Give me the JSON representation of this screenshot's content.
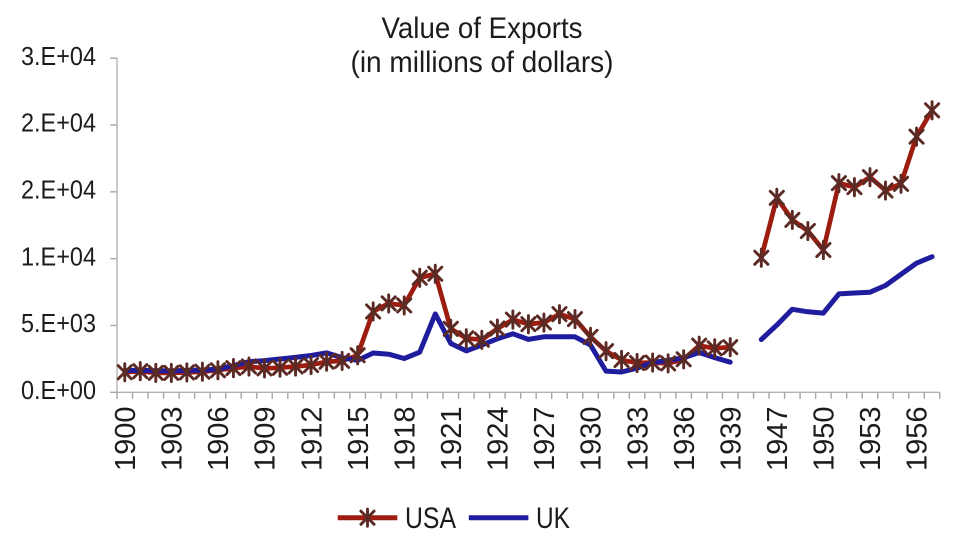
{
  "title": {
    "line1": "Value of Exports",
    "line2": "(in millions of dollars)"
  },
  "legend": {
    "items": [
      {
        "label": "USA",
        "symbol": "line-with-star-marker",
        "color": "#9d1c10"
      },
      {
        "label": "UK",
        "symbol": "line",
        "color": "#1f1c9e"
      }
    ]
  },
  "chart_data": {
    "type": "line",
    "title": "Value of Exports",
    "subtitle": "(in millions of dollars)",
    "xlabel": "",
    "ylabel": "",
    "grid": "off",
    "legend_position": "bottom-center",
    "y_axis": {
      "min": 0,
      "max": 25000,
      "step": 5000,
      "tick_labels_top_to_bottom": [
        "3.E+04",
        "2.E+04",
        "2.E+04",
        "1.E+04",
        "5.E+03",
        "0.E+00"
      ],
      "format": "scientific-0-decimals"
    },
    "x_axis": {
      "categories_note": "years 1900-1939 then 1946-1957; war years 1940-1945 omitted creating a gap",
      "tick_label_years": [
        1900,
        1903,
        1906,
        1909,
        1912,
        1915,
        1918,
        1921,
        1924,
        1927,
        1930,
        1933,
        1936,
        1939,
        1947,
        1950,
        1953,
        1956
      ],
      "label_rotation_degrees": -90
    },
    "series": [
      {
        "name": "USA",
        "color": "#9d1c10",
        "marker": "star",
        "marker_color": "#5c2a24",
        "points": [
          [
            1900,
            1500
          ],
          [
            1901,
            1580
          ],
          [
            1902,
            1450
          ],
          [
            1903,
            1450
          ],
          [
            1904,
            1490
          ],
          [
            1905,
            1540
          ],
          [
            1906,
            1650
          ],
          [
            1907,
            1810
          ],
          [
            1908,
            1930
          ],
          [
            1909,
            1790
          ],
          [
            1910,
            1840
          ],
          [
            1911,
            1930
          ],
          [
            1912,
            2040
          ],
          [
            1913,
            2290
          ],
          [
            1914,
            2350
          ],
          [
            1915,
            2770
          ],
          [
            1916,
            6050
          ],
          [
            1917,
            6650
          ],
          [
            1918,
            6500
          ],
          [
            1919,
            8570
          ],
          [
            1920,
            8870
          ],
          [
            1921,
            4750
          ],
          [
            1922,
            4040
          ],
          [
            1923,
            3930
          ],
          [
            1924,
            4770
          ],
          [
            1925,
            5440
          ],
          [
            1926,
            5100
          ],
          [
            1927,
            5220
          ],
          [
            1928,
            5850
          ],
          [
            1929,
            5480
          ],
          [
            1930,
            4150
          ],
          [
            1931,
            3080
          ],
          [
            1932,
            2420
          ],
          [
            1933,
            2190
          ],
          [
            1934,
            2230
          ],
          [
            1935,
            2160
          ],
          [
            1936,
            2470
          ],
          [
            1937,
            3490
          ],
          [
            1938,
            3290
          ],
          [
            1939,
            3380
          ],
          [
            1946,
            10070
          ],
          [
            1947,
            14550
          ],
          [
            1948,
            12900
          ],
          [
            1949,
            12070
          ],
          [
            1950,
            10650
          ],
          [
            1951,
            15650
          ],
          [
            1952,
            15350
          ],
          [
            1953,
            16100
          ],
          [
            1954,
            15100
          ],
          [
            1955,
            15600
          ],
          [
            1956,
            19130
          ],
          [
            1957,
            21100
          ]
        ]
      },
      {
        "name": "UK",
        "color": "#1f1c9e",
        "marker": "none",
        "points": [
          [
            1900,
            1640
          ],
          [
            1901,
            1640
          ],
          [
            1902,
            1620
          ],
          [
            1903,
            1600
          ],
          [
            1904,
            1640
          ],
          [
            1905,
            1660
          ],
          [
            1906,
            1740
          ],
          [
            1907,
            2000
          ],
          [
            1908,
            2290
          ],
          [
            1909,
            2370
          ],
          [
            1910,
            2490
          ],
          [
            1911,
            2610
          ],
          [
            1912,
            2750
          ],
          [
            1913,
            2950
          ],
          [
            1914,
            2590
          ],
          [
            1915,
            2390
          ],
          [
            1916,
            2940
          ],
          [
            1917,
            2850
          ],
          [
            1918,
            2530
          ],
          [
            1919,
            3000
          ],
          [
            1920,
            5870
          ],
          [
            1921,
            3650
          ],
          [
            1922,
            3100
          ],
          [
            1923,
            3540
          ],
          [
            1924,
            4000
          ],
          [
            1925,
            4380
          ],
          [
            1926,
            3960
          ],
          [
            1927,
            4150
          ],
          [
            1928,
            4150
          ],
          [
            1929,
            4150
          ],
          [
            1930,
            3540
          ],
          [
            1931,
            1590
          ],
          [
            1932,
            1520
          ],
          [
            1933,
            1800
          ],
          [
            1934,
            2230
          ],
          [
            1935,
            2390
          ],
          [
            1936,
            2580
          ],
          [
            1937,
            2980
          ],
          [
            1938,
            2600
          ],
          [
            1939,
            2250
          ],
          [
            1946,
            3950
          ],
          [
            1947,
            5030
          ],
          [
            1948,
            6210
          ],
          [
            1949,
            6020
          ],
          [
            1950,
            5930
          ],
          [
            1951,
            7360
          ],
          [
            1952,
            7430
          ],
          [
            1953,
            7490
          ],
          [
            1954,
            7990
          ],
          [
            1955,
            8830
          ],
          [
            1956,
            9660
          ],
          [
            1957,
            10150
          ]
        ]
      }
    ],
    "colors": {
      "axis": "#b3b3b3",
      "tick": "#a6a6a6",
      "label_text": "#1c1c1c",
      "background": "#ffffff"
    }
  }
}
